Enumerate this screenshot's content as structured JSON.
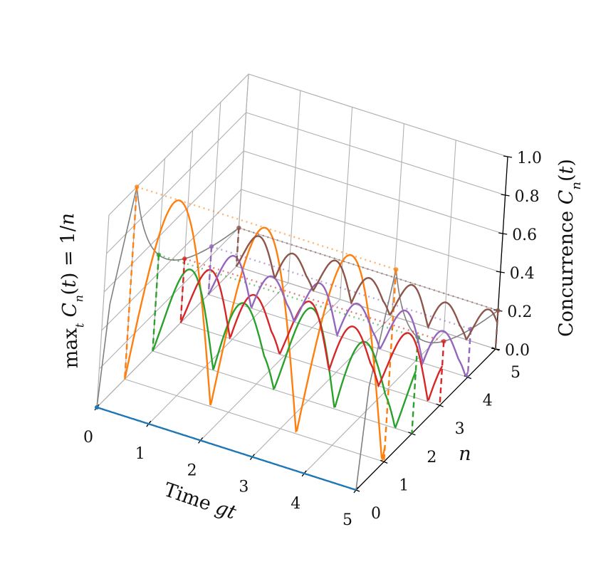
{
  "chart_data": {
    "type": "line",
    "projection": "3d",
    "xlabel": "Time gt",
    "ylabel": "n",
    "zlabel": "Concurrence C_n(t)",
    "side_label": "max_t C_n(t) = 1/n",
    "xlim": [
      0,
      5
    ],
    "ylim": [
      0,
      5
    ],
    "zlim": [
      0,
      1
    ],
    "x_ticks": [
      "0",
      "1",
      "2",
      "3",
      "4",
      "5"
    ],
    "y_ticks": [
      "0",
      "1",
      "2",
      "3",
      "4",
      "5"
    ],
    "z_ticks": [
      "0.0",
      "0.2",
      "0.4",
      "0.6",
      "0.8",
      "1.0"
    ],
    "grid": true,
    "series": [
      {
        "n": 0,
        "color": "#1f77b4",
        "max": 0.0
      },
      {
        "n": 1,
        "color": "#ff7f0e",
        "max": 1.0
      },
      {
        "n": 2,
        "color": "#2ca02c",
        "max": 0.5
      },
      {
        "n": 3,
        "color": "#d62728",
        "max": 0.333
      },
      {
        "n": 4,
        "color": "#9467bd",
        "max": 0.25
      },
      {
        "n": 5,
        "color": "#8c564b",
        "max": 0.2
      }
    ],
    "envelope": {
      "color": "#808080",
      "function": "1/n"
    }
  }
}
